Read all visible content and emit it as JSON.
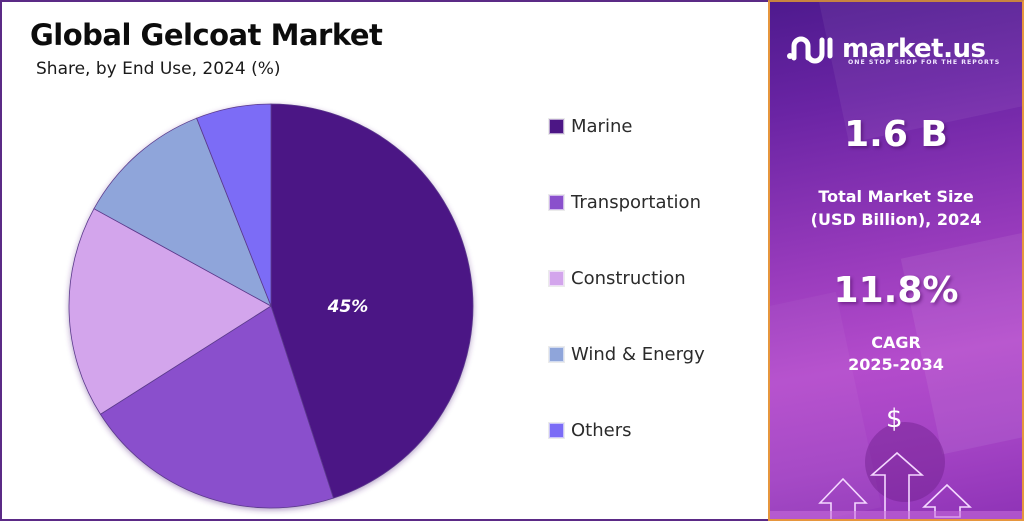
{
  "chart": {
    "title": "Global Gelcoat Market",
    "subtitle": "Share, by End Use, 2024 (%)",
    "highlight_label": "45%"
  },
  "legend": {
    "items": [
      {
        "label": "Marine",
        "color": "#4c1685"
      },
      {
        "label": "Transportation",
        "color": "#8a50cc"
      },
      {
        "label": "Construction",
        "color": "#d3a5ec"
      },
      {
        "label": "Wind & Energy",
        "color": "#8fa5da"
      },
      {
        "label": "Others",
        "color": "#7b6cf6"
      }
    ]
  },
  "sidebar": {
    "brand_name": "market.us",
    "brand_tagline": "ONE STOP SHOP FOR THE REPORTS",
    "market_size_value": "1.6 B",
    "market_size_label_line1": "Total Market Size",
    "market_size_label_line2": "(USD Billion), 2024",
    "cagr_value": "11.8%",
    "cagr_label_line1": "CAGR",
    "cagr_label_line2": "2025-2034",
    "dollar_symbol": "$"
  },
  "chart_data": {
    "type": "pie",
    "title": "Global Gelcoat Market",
    "subtitle": "Share, by End Use, 2024 (%)",
    "categories": [
      "Marine",
      "Transportation",
      "Construction",
      "Wind & Energy",
      "Others"
    ],
    "values": [
      45,
      21,
      17,
      11,
      6
    ],
    "colors": [
      "#4c1685",
      "#8a50cc",
      "#d3a5ec",
      "#8fa5da",
      "#7b6cf6"
    ],
    "data_labels": [
      {
        "category": "Marine",
        "text": "45%"
      }
    ],
    "start_angle": "12 o'clock, clockwise",
    "legend_position": "right",
    "unit": "%"
  }
}
